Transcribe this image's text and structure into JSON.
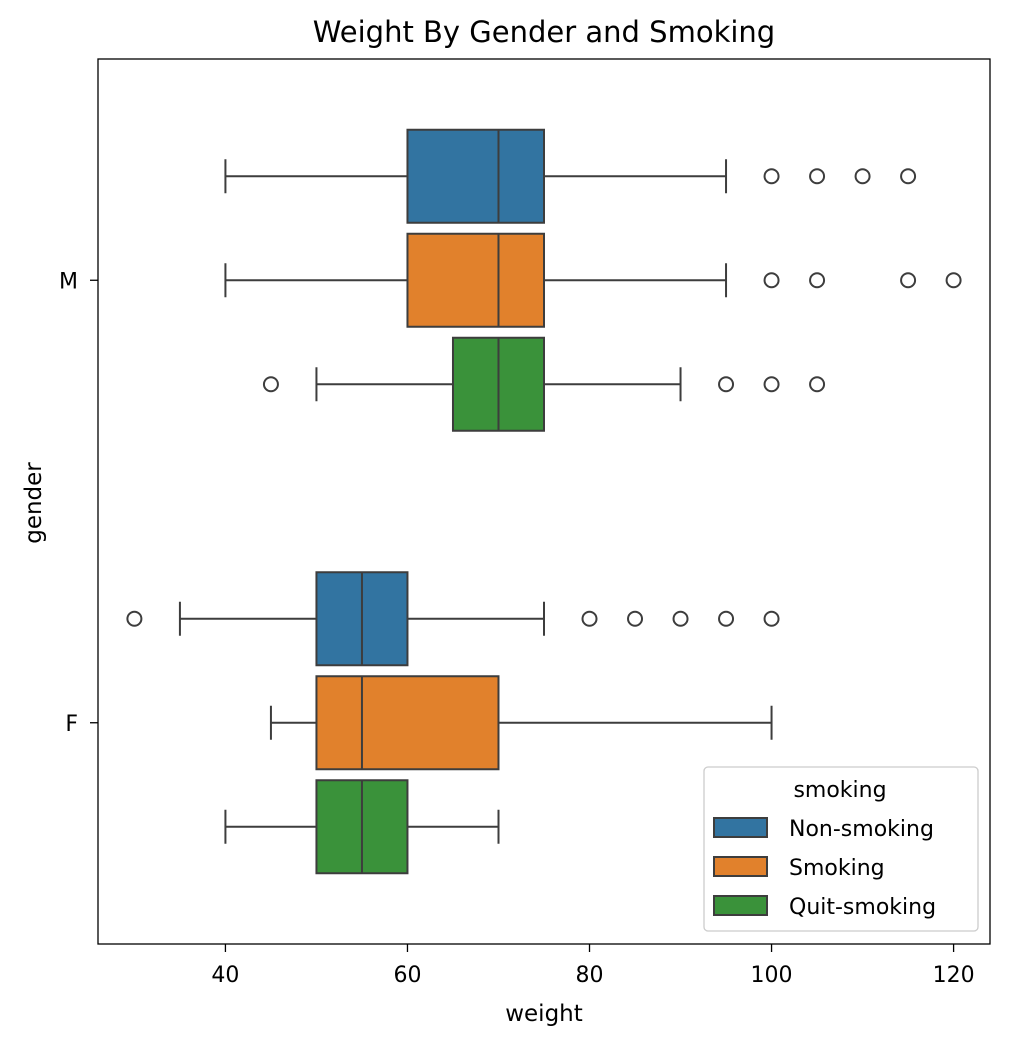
{
  "chart_data": {
    "type": "boxplot",
    "orientation": "horizontal",
    "title": "Weight By Gender and Smoking",
    "xlabel": "weight",
    "ylabel": "gender",
    "xlim": [
      26,
      124
    ],
    "x_ticks": [
      40,
      60,
      80,
      100,
      120
    ],
    "categories": [
      "M",
      "F"
    ],
    "grid": false,
    "legend": {
      "title": "smoking",
      "position": "lower-right",
      "entries": [
        "Non-smoking",
        "Smoking",
        "Quit-smoking"
      ]
    },
    "series": [
      {
        "name": "Non-smoking",
        "color": "#3274a1",
        "boxes": [
          {
            "category": "M",
            "whisker_low": 40,
            "q1": 60,
            "median": 70,
            "q3": 75,
            "whisker_high": 95,
            "outliers": [
              100,
              105,
              110,
              115
            ]
          },
          {
            "category": "F",
            "whisker_low": 35,
            "q1": 50,
            "median": 55,
            "q3": 60,
            "whisker_high": 75,
            "outliers": [
              30,
              80,
              85,
              90,
              95,
              100
            ]
          }
        ]
      },
      {
        "name": "Smoking",
        "color": "#e1812c",
        "boxes": [
          {
            "category": "M",
            "whisker_low": 40,
            "q1": 60,
            "median": 70,
            "q3": 75,
            "whisker_high": 95,
            "outliers": [
              100,
              105,
              115,
              120
            ]
          },
          {
            "category": "F",
            "whisker_low": 45,
            "q1": 50,
            "median": 55,
            "q3": 70,
            "whisker_high": 100,
            "outliers": []
          }
        ]
      },
      {
        "name": "Quit-smoking",
        "color": "#3a923a",
        "boxes": [
          {
            "category": "M",
            "whisker_low": 50,
            "q1": 65,
            "median": 70,
            "q3": 75,
            "whisker_high": 90,
            "outliers": [
              45,
              95,
              100,
              105
            ]
          },
          {
            "category": "F",
            "whisker_low": 40,
            "q1": 50,
            "median": 55,
            "q3": 60,
            "whisker_high": 70,
            "outliers": []
          }
        ]
      }
    ],
    "line_color": "#3d3d3d"
  }
}
